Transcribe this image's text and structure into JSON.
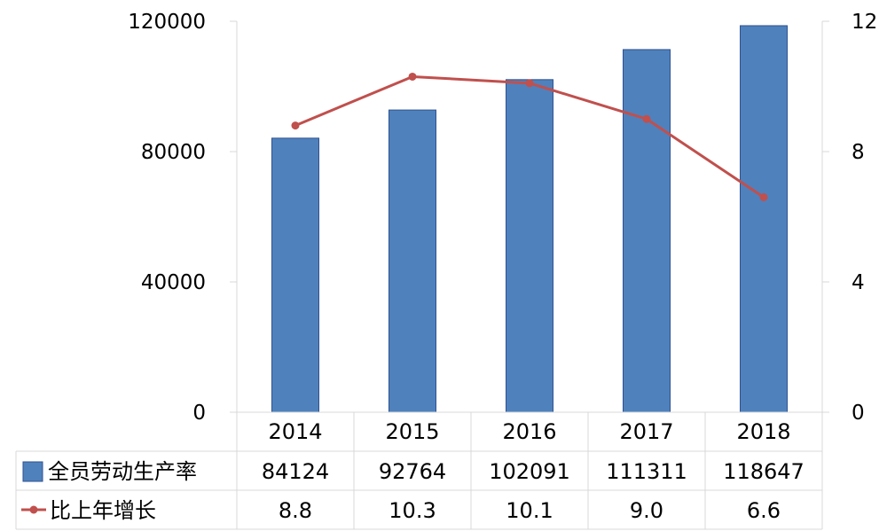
{
  "chart_data": {
    "type": "bar",
    "categories": [
      "2014",
      "2015",
      "2016",
      "2017",
      "2018"
    ],
    "series": [
      {
        "name": "全员劳动生产率",
        "type": "bar",
        "axis": "left",
        "color": "#4F81BD",
        "values": [
          84124,
          92764,
          102091,
          111311,
          118647
        ],
        "labels": [
          "84124",
          "92764",
          "102091",
          "111311",
          "118647"
        ]
      },
      {
        "name": "比上年增长",
        "type": "line",
        "axis": "right",
        "color": "#C0504D",
        "values": [
          8.8,
          10.3,
          10.1,
          9.0,
          6.6
        ],
        "labels": [
          "8.8",
          "10.3",
          "10.1",
          "9.0",
          "6.6"
        ]
      }
    ],
    "y_left": {
      "min": 0,
      "max": 120000,
      "ticks": [
        "0",
        "40000",
        "80000",
        "120000"
      ]
    },
    "y_right": {
      "min": 0,
      "max": 12,
      "ticks": [
        "0",
        "4",
        "8",
        "12"
      ]
    },
    "grid": false,
    "legend": "data-table"
  }
}
